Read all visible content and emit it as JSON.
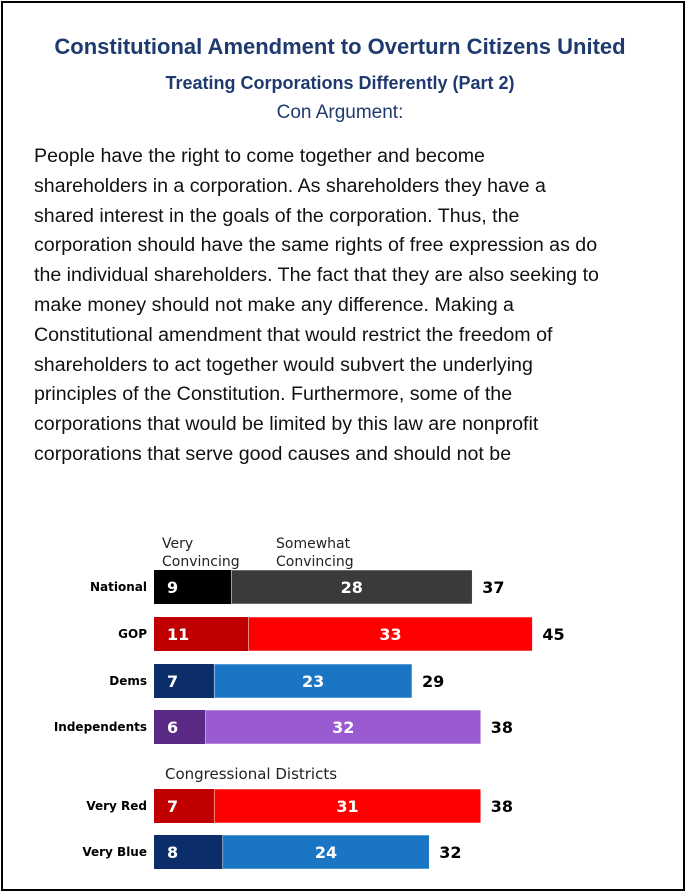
{
  "title": "Constitutional Amendment to Overturn Citizens United",
  "subtitle": "Treating Corporations Differently (Part 2)",
  "heading": "Con Argument:",
  "body_text": "People have the right to come together and become\nshareholders in a corporation. As shareholders they have a\nshared interest in the goals of the corporation. Thus, the\ncorporation should have the same rights of free expression as do\nthe individual shareholders. The fact that they are also seeking to\nmake money should not make any difference. Making a\nConstitutional amendment that would restrict the freedom of\nshareholders to act together would subvert the underlying\nprinciples of the Constitution.  Furthermore, some of the\ncorporations that would be limited by this law are nonprofit\ncorporations that serve good causes and should not be",
  "chart_data": {
    "type": "bar",
    "stacked": true,
    "orientation": "horizontal",
    "legend": [
      "Very Convincing",
      "Somewhat Convincing"
    ],
    "section_label": "Congressional Districts",
    "rows": [
      {
        "label": "National",
        "very": 9,
        "somewhat": 28,
        "total": 37,
        "color_very": "#000000",
        "color_somewhat": "#3a3a3a"
      },
      {
        "label": "GOP",
        "very": 11,
        "somewhat": 33,
        "total": 45,
        "color_very": "#c00000",
        "color_somewhat": "#ff0000"
      },
      {
        "label": "Dems",
        "very": 7,
        "somewhat": 23,
        "total": 29,
        "color_very": "#0b2e6b",
        "color_somewhat": "#1a75c5"
      },
      {
        "label": "Independents",
        "very": 6,
        "somewhat": 32,
        "total": 38,
        "color_very": "#5b2a86",
        "color_somewhat": "#9b5ad0"
      },
      {
        "label": "Very Red",
        "very": 7,
        "somewhat": 31,
        "total": 38,
        "color_very": "#c00000",
        "color_somewhat": "#ff0000"
      },
      {
        "label": "Very Blue",
        "very": 8,
        "somewhat": 24,
        "total": 32,
        "color_very": "#0b2e6b",
        "color_somewhat": "#1a75c5"
      }
    ]
  }
}
